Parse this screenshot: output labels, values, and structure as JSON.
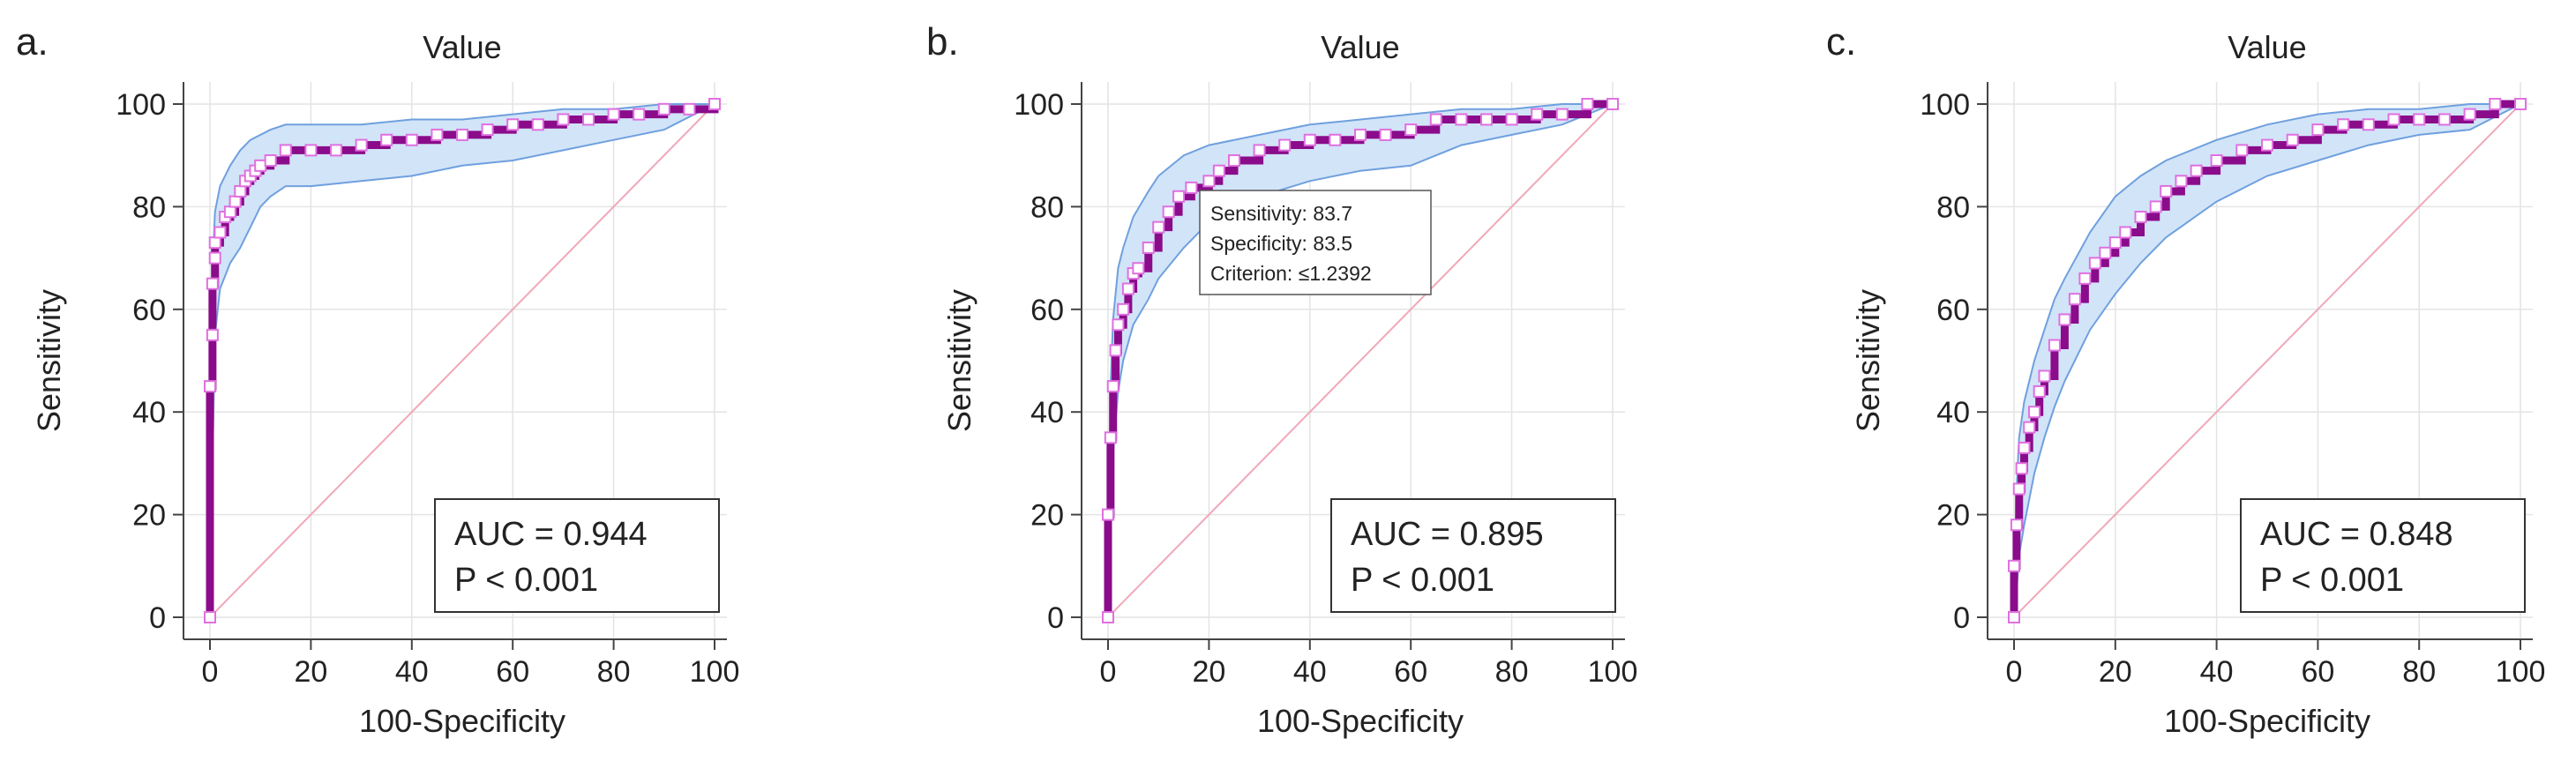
{
  "chart_data": [
    {
      "type": "line",
      "panel_label": "a.",
      "title": "Value",
      "xlabel": "100-Specificity",
      "ylabel": "Sensitivity",
      "xlim": [
        0,
        100
      ],
      "ylim": [
        0,
        100
      ],
      "xticks": [
        "0",
        "20",
        "40",
        "60",
        "80",
        "100"
      ],
      "yticks": [
        "0",
        "20",
        "40",
        "60",
        "80",
        "100"
      ],
      "auc_text": "AUC = 0.944",
      "p_text": "P < 0.001",
      "series": [
        {
          "name": "ROC curve",
          "x": [
            0,
            0,
            0.5,
            0.5,
            1,
            1,
            2,
            3,
            4,
            5,
            6,
            7,
            8,
            9,
            10,
            12,
            15,
            20,
            25,
            30,
            35,
            40,
            45,
            50,
            55,
            60,
            65,
            70,
            75,
            80,
            85,
            90,
            95,
            100
          ],
          "y": [
            0,
            45,
            55,
            65,
            70,
            73,
            75,
            78,
            79,
            81,
            83,
            85,
            86,
            87,
            88,
            89,
            91,
            91,
            91,
            92,
            93,
            93,
            94,
            94,
            95,
            96,
            96,
            97,
            97,
            98,
            98,
            99,
            99,
            100
          ]
        },
        {
          "name": "Upper CI",
          "x": [
            0,
            0.5,
            1,
            2,
            4,
            6,
            8,
            10,
            12,
            15,
            20,
            30,
            40,
            50,
            60,
            70,
            80,
            90,
            100
          ],
          "y": [
            0,
            68,
            79,
            84,
            88,
            91,
            93,
            94,
            95,
            96,
            96,
            96,
            97,
            97,
            98,
            99,
            99,
            100,
            100
          ]
        },
        {
          "name": "Lower CI",
          "x": [
            0,
            0.5,
            1,
            2,
            4,
            6,
            8,
            10,
            12,
            15,
            20,
            30,
            40,
            50,
            60,
            70,
            80,
            90,
            100
          ],
          "y": [
            0,
            30,
            55,
            64,
            69,
            72,
            76,
            80,
            82,
            84,
            84,
            85,
            86,
            88,
            89,
            91,
            93,
            95,
            100
          ]
        },
        {
          "name": "Reference",
          "x": [
            0,
            100
          ],
          "y": [
            0,
            100
          ]
        }
      ]
    },
    {
      "type": "line",
      "panel_label": "b.",
      "title": "Value",
      "xlabel": "100-Specificity",
      "ylabel": "Sensitivity",
      "xlim": [
        0,
        100
      ],
      "ylim": [
        0,
        100
      ],
      "xticks": [
        "0",
        "20",
        "40",
        "60",
        "80",
        "100"
      ],
      "yticks": [
        "0",
        "20",
        "40",
        "60",
        "80",
        "100"
      ],
      "auc_text": "AUC = 0.895",
      "p_text": "P < 0.001",
      "tooltip": {
        "sensitivity": "Sensitivity: 83.7",
        "specificity": "Specificity: 83.5",
        "criterion": "Criterion: ≤1.2392"
      },
      "series": [
        {
          "name": "ROC curve",
          "x": [
            0,
            0,
            0.5,
            1,
            1.5,
            2,
            3,
            4,
            5,
            6,
            8,
            10,
            12,
            14,
            16.5,
            20,
            22,
            25,
            30,
            35,
            40,
            45,
            50,
            55,
            60,
            65,
            70,
            75,
            80,
            85,
            90,
            95,
            100
          ],
          "y": [
            0,
            20,
            35,
            45,
            52,
            57,
            60,
            64,
            67,
            68,
            72,
            76,
            79,
            82,
            83.7,
            85,
            87,
            89,
            91,
            92,
            93,
            93,
            94,
            94,
            95,
            97,
            97,
            97,
            97,
            98,
            98,
            100,
            100
          ]
        },
        {
          "name": "Upper CI",
          "x": [
            0,
            0.5,
            1,
            2,
            3,
            5,
            8,
            10,
            15,
            20,
            30,
            40,
            50,
            60,
            70,
            80,
            90,
            100
          ],
          "y": [
            0,
            45,
            58,
            68,
            72,
            78,
            83,
            86,
            90,
            92,
            94,
            96,
            97,
            98,
            99,
            99,
            100,
            100
          ]
        },
        {
          "name": "Lower CI",
          "x": [
            0,
            0.5,
            1,
            2,
            3,
            5,
            8,
            10,
            15,
            20,
            30,
            40,
            50,
            60,
            70,
            80,
            90,
            100
          ],
          "y": [
            0,
            20,
            32,
            44,
            50,
            57,
            62,
            66,
            72,
            77,
            82,
            85,
            87,
            88,
            92,
            94,
            96,
            100
          ]
        },
        {
          "name": "Reference",
          "x": [
            0,
            100
          ],
          "y": [
            0,
            100
          ]
        }
      ]
    },
    {
      "type": "line",
      "panel_label": "c.",
      "title": "Value",
      "xlabel": "100-Specificity",
      "ylabel": "Sensitivity",
      "xlim": [
        0,
        100
      ],
      "ylim": [
        0,
        100
      ],
      "xticks": [
        "0",
        "20",
        "40",
        "60",
        "80",
        "100"
      ],
      "yticks": [
        "0",
        "20",
        "40",
        "60",
        "80",
        "100"
      ],
      "auc_text": "AUC = 0.848",
      "p_text": "P < 0.001",
      "series": [
        {
          "name": "ROC curve",
          "x": [
            0,
            0,
            0.5,
            1,
            1.5,
            2,
            3,
            4,
            5,
            6,
            8,
            10,
            12,
            14,
            16,
            18,
            20,
            22,
            25,
            28,
            30,
            33,
            36,
            40,
            45,
            50,
            55,
            60,
            65,
            70,
            75,
            80,
            85,
            90,
            95,
            100
          ],
          "y": [
            0,
            10,
            18,
            25,
            29,
            33,
            37,
            40,
            44,
            47,
            53,
            58,
            62,
            66,
            69,
            71,
            73,
            75,
            78,
            80,
            83,
            85,
            87,
            89,
            91,
            92,
            93,
            95,
            96,
            96,
            97,
            97,
            97,
            98,
            100,
            100
          ]
        },
        {
          "name": "Upper CI",
          "x": [
            0,
            0.5,
            1,
            2,
            4,
            6,
            8,
            10,
            15,
            20,
            25,
            30,
            40,
            50,
            60,
            70,
            80,
            90,
            100
          ],
          "y": [
            0,
            25,
            35,
            42,
            50,
            56,
            62,
            66,
            75,
            82,
            86,
            89,
            93,
            96,
            98,
            99,
            99,
            100,
            100
          ]
        },
        {
          "name": "Lower CI",
          "x": [
            0,
            0.5,
            1,
            2,
            4,
            6,
            8,
            10,
            15,
            20,
            25,
            30,
            40,
            50,
            60,
            70,
            80,
            90,
            100
          ],
          "y": [
            0,
            5,
            12,
            18,
            28,
            35,
            41,
            46,
            56,
            63,
            69,
            74,
            81,
            86,
            89,
            92,
            94,
            95,
            100
          ]
        },
        {
          "name": "Reference",
          "x": [
            0,
            100
          ],
          "y": [
            0,
            100
          ]
        }
      ]
    }
  ],
  "colors": {
    "roc": "#8a0c8a",
    "marker": "#e070e0",
    "ci_fill": "#d2e4f8",
    "ci_line": "#6fa0de",
    "reference": "#f0a8b8",
    "grid": "#e4e4e4",
    "axis": "#444444"
  }
}
